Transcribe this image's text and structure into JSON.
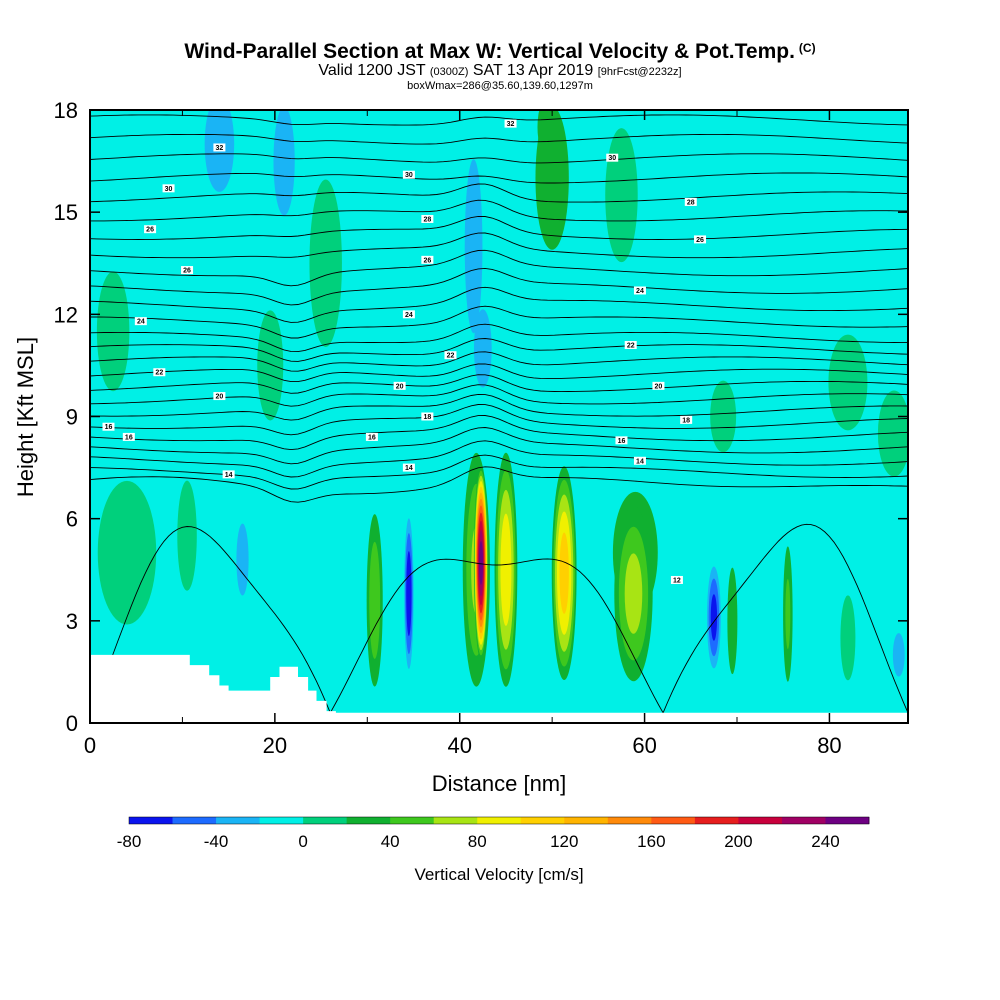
{
  "header": {
    "title": "Wind-Parallel Section at Max W: Vertical Velocity & Pot.Temp.",
    "title_mark": "(C)",
    "valid_prefix": "Valid 1200 JST",
    "valid_utc": "(0300Z)",
    "valid_date": "SAT 13 Apr 2019",
    "forecast_info": "[9hrFcst@2232z]",
    "box_info": "boxWmax=286@35.60,139.60,1297m"
  },
  "chart_data": {
    "type": "heatmap",
    "xlabel": "Distance [nm]",
    "ylabel": "Height [Kft MSL]",
    "xlim": [
      0,
      88.5
    ],
    "ylim": [
      0,
      18
    ],
    "xticks": [
      "0",
      "20",
      "40",
      "60",
      "80"
    ],
    "xtick_values": [
      0,
      20,
      40,
      60,
      80
    ],
    "yticks": [
      "0",
      "3",
      "6",
      "9",
      "12",
      "15",
      "18"
    ],
    "ytick_values": [
      0,
      3,
      6,
      9,
      12,
      15,
      18
    ],
    "colorbar": {
      "title": "Vertical Velocity [cm/s]",
      "labels": [
        "-80",
        "-40",
        "0",
        "40",
        "80",
        "120",
        "160",
        "200",
        "240"
      ],
      "label_values": [
        -80,
        -40,
        0,
        40,
        80,
        120,
        160,
        200,
        240
      ],
      "bins": [
        -80,
        -60,
        -40,
        -20,
        0,
        20,
        40,
        60,
        80,
        100,
        120,
        140,
        160,
        180,
        200,
        220,
        240,
        260
      ],
      "colors": [
        "#0a14ee",
        "#1d6bff",
        "#1ab4f5",
        "#00f0e6",
        "#00d07c",
        "#10b030",
        "#3ec81e",
        "#a8e414",
        "#f0f000",
        "#ffd000",
        "#ffb400",
        "#ff8a0a",
        "#ff5a14",
        "#e61e1e",
        "#c8003c",
        "#a00064",
        "#6e0082"
      ]
    },
    "background_color": "#00f0e6",
    "velocity_features": [
      {
        "x": 42.3,
        "y": 4.7,
        "rx": 0.8,
        "ry": 3.0,
        "w": 250
      },
      {
        "x": 41.8,
        "y": 4.5,
        "rx": 1.8,
        "ry": 4.2,
        "w": 60
      },
      {
        "x": 45.0,
        "y": 4.5,
        "rx": 1.4,
        "ry": 3.9,
        "w": 95
      },
      {
        "x": 51.3,
        "y": 4.4,
        "rx": 1.5,
        "ry": 3.5,
        "w": 110
      },
      {
        "x": 58.8,
        "y": 3.8,
        "rx": 2.5,
        "ry": 3.1,
        "w": 65
      },
      {
        "x": 59.0,
        "y": 5.0,
        "rx": 3.8,
        "ry": 2.8,
        "w": 28
      },
      {
        "x": 30.8,
        "y": 3.6,
        "rx": 1.1,
        "ry": 3.2,
        "w": 52
      },
      {
        "x": 69.5,
        "y": 3.0,
        "rx": 0.9,
        "ry": 2.6,
        "w": 25
      },
      {
        "x": 75.5,
        "y": 3.2,
        "rx": 0.7,
        "ry": 2.7,
        "w": 40
      },
      {
        "x": 34.5,
        "y": 3.8,
        "rx": 0.6,
        "ry": 2.6,
        "w": -75
      },
      {
        "x": 67.5,
        "y": 3.1,
        "rx": 0.9,
        "ry": 1.8,
        "w": -65
      },
      {
        "x": 16.5,
        "y": 4.8,
        "rx": 1.0,
        "ry": 1.6,
        "w": -30
      },
      {
        "x": 10.5,
        "y": 5.5,
        "rx": 1.5,
        "ry": 2.3,
        "w": 8
      },
      {
        "x": 4.0,
        "y": 5.0,
        "rx": 4.5,
        "ry": 3.0,
        "w": 8
      },
      {
        "x": 82.0,
        "y": 2.5,
        "rx": 1.3,
        "ry": 2.0,
        "w": 12
      },
      {
        "x": 87.5,
        "y": 2.0,
        "rx": 1.0,
        "ry": 1.0,
        "w": -28
      },
      {
        "x": 14.0,
        "y": 17.0,
        "rx": 2.5,
        "ry": 2.2,
        "w": -28
      },
      {
        "x": 21.0,
        "y": 16.5,
        "rx": 1.8,
        "ry": 2.5,
        "w": -28
      },
      {
        "x": 41.5,
        "y": 14.0,
        "rx": 1.5,
        "ry": 4.0,
        "w": -28
      },
      {
        "x": 42.5,
        "y": 11.0,
        "rx": 1.5,
        "ry": 1.8,
        "w": -28
      },
      {
        "x": 50.0,
        "y": 16.0,
        "rx": 3.0,
        "ry": 3.5,
        "w": 25
      },
      {
        "x": 49.5,
        "y": 17.5,
        "rx": 1.5,
        "ry": 1.2,
        "w": 38
      },
      {
        "x": 57.5,
        "y": 15.5,
        "rx": 2.5,
        "ry": 2.8,
        "w": 8
      },
      {
        "x": 25.5,
        "y": 13.5,
        "rx": 2.5,
        "ry": 3.5,
        "w": 8
      },
      {
        "x": 19.5,
        "y": 10.5,
        "rx": 2.0,
        "ry": 2.3,
        "w": 8
      },
      {
        "x": 2.5,
        "y": 11.5,
        "rx": 2.5,
        "ry": 2.5,
        "w": 8
      },
      {
        "x": 68.5,
        "y": 9.0,
        "rx": 2.0,
        "ry": 1.5,
        "w": 8
      },
      {
        "x": 82.0,
        "y": 10.0,
        "rx": 3.0,
        "ry": 2.0,
        "w": 8
      },
      {
        "x": 87.0,
        "y": 8.5,
        "rx": 2.5,
        "ry": 1.8,
        "w": 8
      }
    ],
    "theta_contours": [
      12,
      14,
      16,
      18,
      20,
      22,
      24,
      26,
      28,
      30,
      32
    ],
    "theta_contour_labels": [
      {
        "text": "12",
        "x": 63.5,
        "y": 4.2
      },
      {
        "text": "14",
        "x": 15.0,
        "y": 7.3
      },
      {
        "text": "14",
        "x": 34.5,
        "y": 7.5
      },
      {
        "text": "14",
        "x": 59.5,
        "y": 7.7
      },
      {
        "text": "16",
        "x": 2.0,
        "y": 8.7
      },
      {
        "text": "16",
        "x": 4.2,
        "y": 8.4
      },
      {
        "text": "16",
        "x": 30.5,
        "y": 8.4
      },
      {
        "text": "16",
        "x": 57.5,
        "y": 8.3
      },
      {
        "text": "18",
        "x": 36.5,
        "y": 9.0
      },
      {
        "text": "18",
        "x": 64.5,
        "y": 8.9
      },
      {
        "text": "20",
        "x": 14.0,
        "y": 9.6
      },
      {
        "text": "20",
        "x": 33.5,
        "y": 9.9
      },
      {
        "text": "20",
        "x": 61.5,
        "y": 9.9
      },
      {
        "text": "22",
        "x": 7.5,
        "y": 10.3
      },
      {
        "text": "22",
        "x": 39.0,
        "y": 10.8
      },
      {
        "text": "22",
        "x": 58.5,
        "y": 11.1
      },
      {
        "text": "24",
        "x": 5.5,
        "y": 11.8
      },
      {
        "text": "24",
        "x": 34.5,
        "y": 12.0
      },
      {
        "text": "24",
        "x": 59.5,
        "y": 12.7
      },
      {
        "text": "26",
        "x": 10.5,
        "y": 13.3
      },
      {
        "text": "26",
        "x": 36.5,
        "y": 13.6
      },
      {
        "text": "26",
        "x": 66.0,
        "y": 14.2
      },
      {
        "text": "26",
        "x": 6.5,
        "y": 14.5
      },
      {
        "text": "28",
        "x": 36.5,
        "y": 14.8
      },
      {
        "text": "28",
        "x": 65.0,
        "y": 15.3
      },
      {
        "text": "30",
        "x": 8.5,
        "y": 15.7
      },
      {
        "text": "30",
        "x": 34.5,
        "y": 16.1
      },
      {
        "text": "30",
        "x": 56.5,
        "y": 16.6
      },
      {
        "text": "32",
        "x": 14.0,
        "y": 16.9
      },
      {
        "text": "32",
        "x": 45.5,
        "y": 17.6
      }
    ],
    "terrain_nm_kft": [
      [
        0,
        2.0
      ],
      [
        10.8,
        2.0
      ],
      [
        10.8,
        1.7
      ],
      [
        12.9,
        1.7
      ],
      [
        12.9,
        1.4
      ],
      [
        14.0,
        1.4
      ],
      [
        14.0,
        1.1
      ],
      [
        15.0,
        1.1
      ],
      [
        15.0,
        0.95
      ],
      [
        19.5,
        0.95
      ],
      [
        19.5,
        1.35
      ],
      [
        20.5,
        1.35
      ],
      [
        20.5,
        1.65
      ],
      [
        22.5,
        1.65
      ],
      [
        22.5,
        1.35
      ],
      [
        23.6,
        1.35
      ],
      [
        23.6,
        0.95
      ],
      [
        24.5,
        0.95
      ],
      [
        24.5,
        0.65
      ],
      [
        25.6,
        0.65
      ],
      [
        25.6,
        0.35
      ],
      [
        26.6,
        0.35
      ],
      [
        26.6,
        0.3
      ],
      [
        88.5,
        0.3
      ]
    ]
  }
}
